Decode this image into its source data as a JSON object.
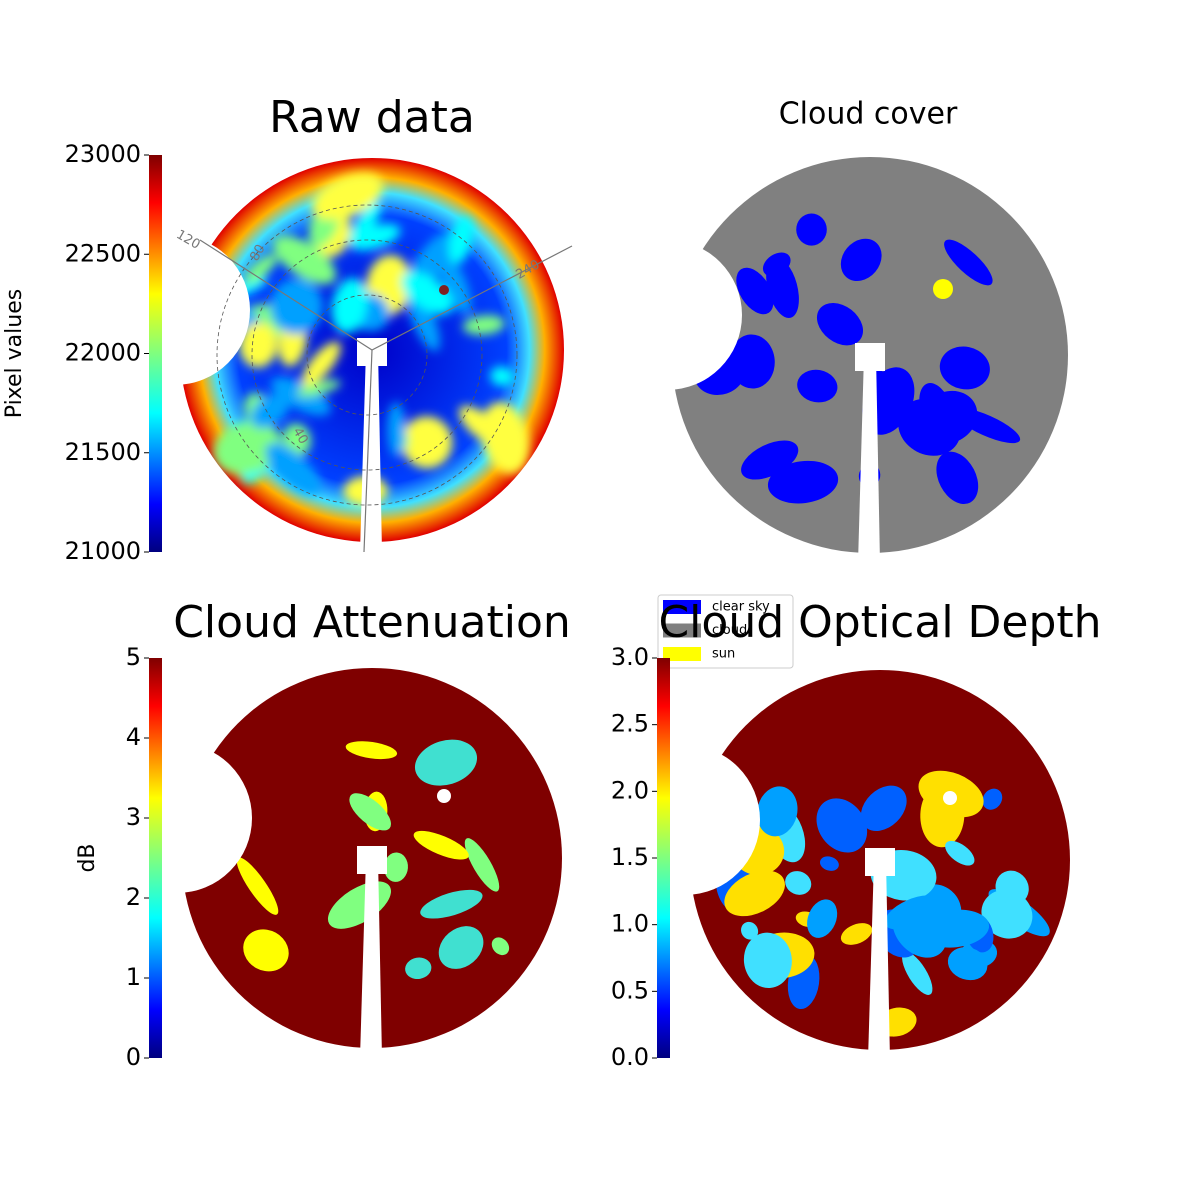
{
  "chart_data": [
    {
      "type": "image",
      "title": "Raw data",
      "colormap": "jet",
      "colorbar": {
        "label": "Pixel values",
        "ylim": [
          21000,
          23000
        ],
        "yticks": [
          21000,
          21500,
          22000,
          22500,
          23000
        ]
      },
      "annotations": [
        "120",
        "240",
        "80",
        "40"
      ]
    },
    {
      "type": "image",
      "title": "Cloud cover",
      "legend": [
        {
          "name": "clear sky",
          "color": "#0000ff"
        },
        {
          "name": "cloud",
          "color": "#808080"
        },
        {
          "name": "sun",
          "color": "#ffff00"
        }
      ]
    },
    {
      "type": "image",
      "title": "Cloud Attenuation",
      "colormap": "jet",
      "colorbar": {
        "label": "dB",
        "ylim": [
          0,
          5
        ],
        "yticks": [
          0,
          1,
          2,
          3,
          4,
          5
        ]
      }
    },
    {
      "type": "image",
      "title": "Cloud Optical Depth",
      "colormap": "jet",
      "colorbar": {
        "ylim": [
          0,
          3
        ],
        "yticks": [
          {
            "value": 0,
            "label": "0.0"
          },
          0.5,
          {
            "value": 1,
            "label": "1.0"
          },
          1.5,
          {
            "value": 2,
            "label": "2.0"
          },
          2.5,
          {
            "value": 3,
            "label": "3.0"
          }
        ]
      }
    }
  ]
}
